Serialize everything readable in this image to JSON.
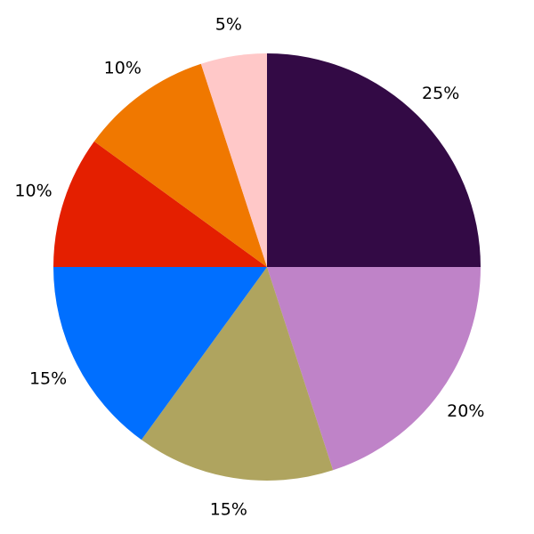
{
  "chart_data": {
    "type": "pie",
    "start_angle_deg": 90,
    "direction": "clockwise",
    "legend": "none",
    "slices": [
      {
        "label": "25%",
        "value": 25,
        "color": "#330a45"
      },
      {
        "label": "20%",
        "value": 20,
        "color": "#bf83c8"
      },
      {
        "label": "15%",
        "value": 15,
        "color": "#afa45f"
      },
      {
        "label": "15%",
        "value": 15,
        "color": "#006fff"
      },
      {
        "label": "10%",
        "value": 10,
        "color": "#e41f00"
      },
      {
        "label": "10%",
        "value": 10,
        "color": "#f07800"
      },
      {
        "label": "5%",
        "value": 5,
        "color": "#ffc8c8"
      }
    ]
  }
}
